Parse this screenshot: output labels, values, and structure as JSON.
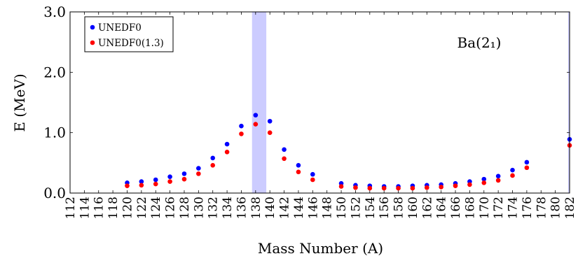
{
  "chart_data": {
    "type": "scatter",
    "xlabel": "Mass Number (A)",
    "ylabel": "E (MeV)",
    "annotation": "Ba(2₁)",
    "xlim": [
      112,
      182
    ],
    "ylim": [
      0,
      3
    ],
    "x_ticks": [
      112,
      114,
      116,
      118,
      120,
      122,
      124,
      126,
      128,
      130,
      132,
      134,
      136,
      138,
      140,
      142,
      144,
      146,
      148,
      150,
      152,
      154,
      156,
      158,
      160,
      162,
      164,
      166,
      168,
      170,
      172,
      174,
      176,
      178,
      180,
      182
    ],
    "y_ticks": [
      0.0,
      1.0,
      2.0,
      3.0
    ],
    "y_tick_labels": [
      "0.0",
      "1.0",
      "2.0",
      "3.0"
    ],
    "legend_position": "top-left",
    "highlight_bands": [
      [
        137.5,
        139.5
      ],
      [
        181.8,
        182.9
      ]
    ],
    "band_color": "#ccccff",
    "series": [
      {
        "name": "UNEDF0",
        "color": "#0000ff",
        "points": [
          [
            120,
            0.17
          ],
          [
            122,
            0.19
          ],
          [
            124,
            0.22
          ],
          [
            126,
            0.27
          ],
          [
            128,
            0.32
          ],
          [
            130,
            0.41
          ],
          [
            132,
            0.58
          ],
          [
            134,
            0.81
          ],
          [
            136,
            1.11
          ],
          [
            138,
            1.29
          ],
          [
            140,
            1.19
          ],
          [
            142,
            0.72
          ],
          [
            144,
            0.46
          ],
          [
            146,
            0.31
          ],
          [
            150,
            0.16
          ],
          [
            152,
            0.13
          ],
          [
            154,
            0.12
          ],
          [
            156,
            0.11
          ],
          [
            158,
            0.11
          ],
          [
            160,
            0.12
          ],
          [
            162,
            0.13
          ],
          [
            164,
            0.14
          ],
          [
            166,
            0.16
          ],
          [
            168,
            0.19
          ],
          [
            170,
            0.23
          ],
          [
            172,
            0.28
          ],
          [
            174,
            0.38
          ],
          [
            176,
            0.51
          ],
          [
            182,
            0.89
          ]
        ]
      },
      {
        "name": "UNEDF0(1.3)",
        "color": "#ff0000",
        "points": [
          [
            120,
            0.12
          ],
          [
            122,
            0.13
          ],
          [
            124,
            0.15
          ],
          [
            126,
            0.19
          ],
          [
            128,
            0.23
          ],
          [
            130,
            0.32
          ],
          [
            132,
            0.46
          ],
          [
            134,
            0.68
          ],
          [
            136,
            0.98
          ],
          [
            138,
            1.14
          ],
          [
            140,
            1.0
          ],
          [
            142,
            0.57
          ],
          [
            144,
            0.35
          ],
          [
            146,
            0.22
          ],
          [
            150,
            0.11
          ],
          [
            152,
            0.09
          ],
          [
            154,
            0.08
          ],
          [
            156,
            0.08
          ],
          [
            158,
            0.08
          ],
          [
            160,
            0.08
          ],
          [
            162,
            0.09
          ],
          [
            164,
            0.1
          ],
          [
            166,
            0.12
          ],
          [
            168,
            0.14
          ],
          [
            170,
            0.17
          ],
          [
            172,
            0.21
          ],
          [
            174,
            0.29
          ],
          [
            176,
            0.42
          ],
          [
            182,
            0.79
          ]
        ]
      }
    ]
  }
}
